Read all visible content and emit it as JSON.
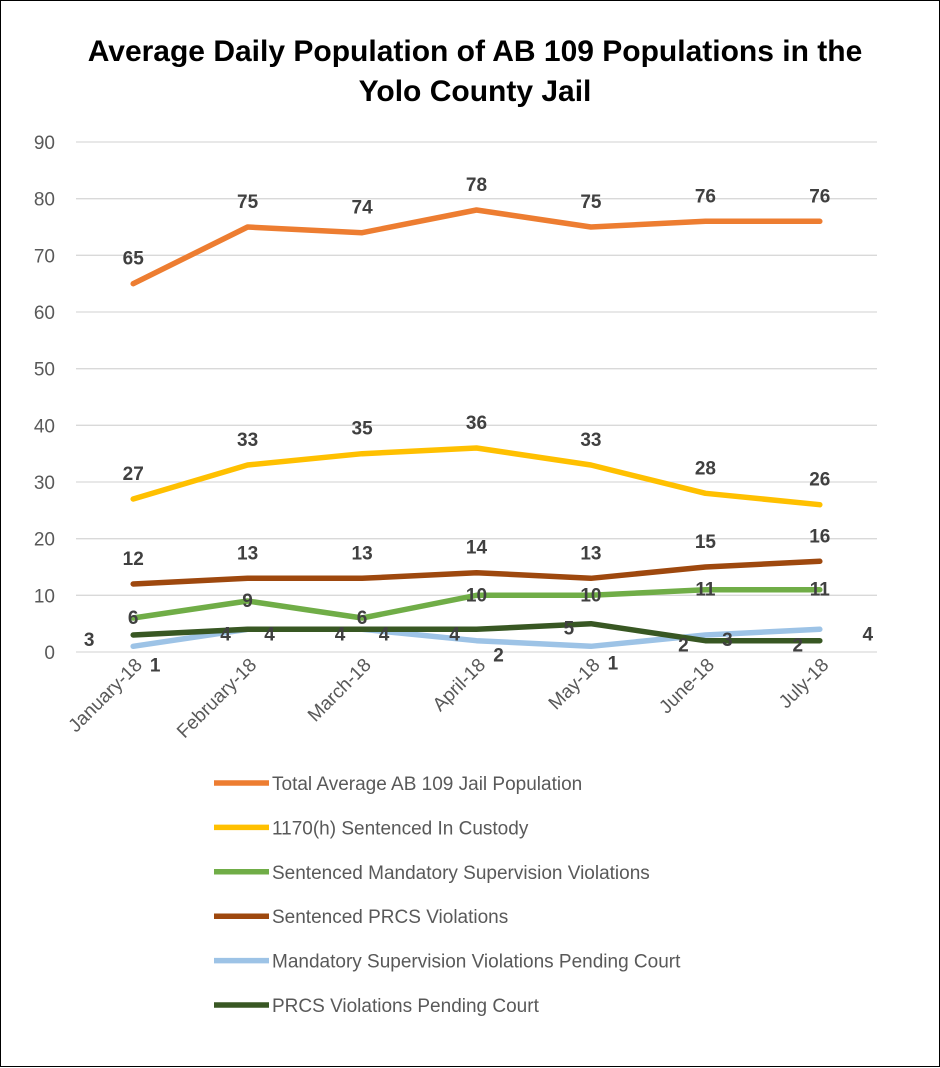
{
  "chart_data": {
    "type": "line",
    "title": "Average Daily Population of AB 109 Populations in the Yolo County Jail",
    "title_lines": [
      "Average Daily Population of AB 109 Populations in the",
      "Yolo County Jail"
    ],
    "xlabel": "",
    "ylabel": "",
    "categories": [
      "January-18",
      "February-18",
      "March-18",
      "April-18",
      "May-18",
      "June-18",
      "July-18"
    ],
    "ylim": [
      0,
      90
    ],
    "yticks": [
      0,
      10,
      20,
      30,
      40,
      50,
      60,
      70,
      80,
      90
    ],
    "grid": true,
    "legend_position": "bottom",
    "series": [
      {
        "name": "Total Average AB 109 Jail Population",
        "color": "#ED7D31",
        "values": [
          65,
          75,
          74,
          78,
          75,
          76,
          76
        ]
      },
      {
        "name": "1170(h) Sentenced In Custody",
        "color": "#FFC000",
        "values": [
          27,
          33,
          35,
          36,
          33,
          28,
          26
        ]
      },
      {
        "name": "Sentenced Mandatory Supervision Violations",
        "color": "#70AD47",
        "values": [
          6,
          9,
          6,
          10,
          10,
          11,
          11
        ]
      },
      {
        "name": "Sentenced PRCS Violations",
        "color": "#9E480E",
        "values": [
          12,
          13,
          13,
          14,
          13,
          15,
          16
        ]
      },
      {
        "name": "Mandatory Supervision Violations Pending Court",
        "color": "#9DC3E6",
        "values": [
          1,
          4,
          4,
          2,
          1,
          3,
          4
        ]
      },
      {
        "name": "PRCS Violations Pending Court",
        "color": "#385723",
        "values": [
          3,
          4,
          4,
          4,
          5,
          2,
          2
        ]
      }
    ]
  }
}
